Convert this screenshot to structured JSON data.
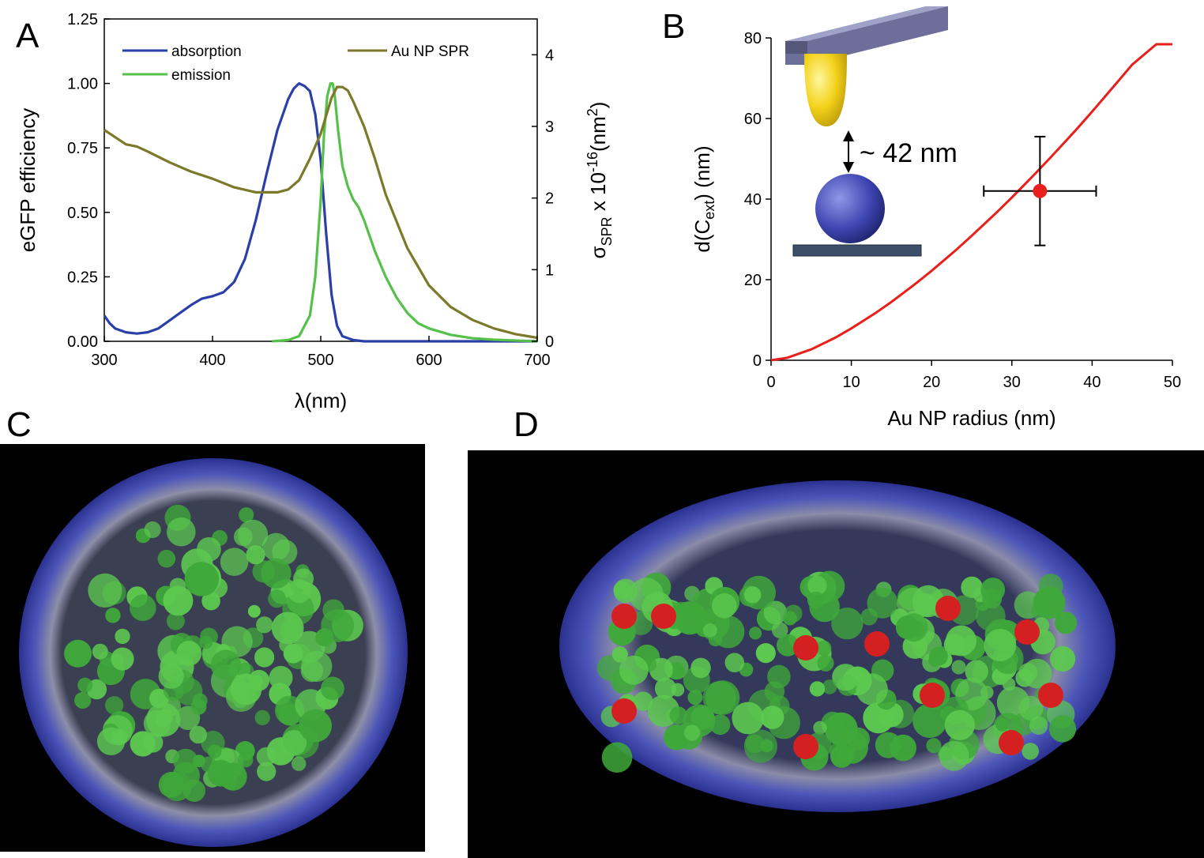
{
  "panels": {
    "A": "A",
    "B": "B",
    "C": "C",
    "D": "D"
  },
  "chart_data": [
    {
      "type": "line",
      "panel": "A",
      "xlabel": "λ(nm)",
      "ylabel": "eGFP efficiency",
      "ylabel_right": "σSPR x 10-16(nm2)",
      "ylabel_right_parts": {
        "sigma": "σ",
        "sub": "SPR",
        "mult": " x 10",
        "exp": "-16",
        "paren_open": "(nm",
        "exp2": "2",
        "paren_close": ")"
      },
      "xlim": [
        300,
        700
      ],
      "ylim": [
        0,
        1.25
      ],
      "ylim_right": [
        0,
        4.5
      ],
      "x_ticks": [
        "300",
        "400",
        "500",
        "600",
        "700"
      ],
      "y_ticks": [
        "0.00",
        "0.25",
        "0.50",
        "0.75",
        "1.00",
        "1.25"
      ],
      "y_right_ticks": [
        "0",
        "1",
        "2",
        "3",
        "4"
      ],
      "legend": [
        {
          "name": "absorption",
          "color": "#2b3fa8"
        },
        {
          "name": "emission",
          "color": "#55c04a"
        },
        {
          "name": "Au NP SPR",
          "color": "#7a7a2a"
        }
      ],
      "series": [
        {
          "name": "absorption",
          "axis": "left",
          "color": "#2b3fa8",
          "x": [
            300,
            305,
            310,
            320,
            330,
            340,
            350,
            360,
            370,
            380,
            390,
            400,
            410,
            420,
            430,
            440,
            450,
            460,
            470,
            475,
            480,
            485,
            490,
            495,
            500,
            505,
            510,
            515,
            520,
            530,
            540,
            560,
            600,
            700
          ],
          "y": [
            0.1,
            0.07,
            0.05,
            0.035,
            0.03,
            0.035,
            0.05,
            0.08,
            0.11,
            0.14,
            0.165,
            0.175,
            0.19,
            0.23,
            0.32,
            0.47,
            0.65,
            0.82,
            0.94,
            0.98,
            1.0,
            0.99,
            0.97,
            0.88,
            0.7,
            0.42,
            0.18,
            0.06,
            0.02,
            0.005,
            0.0,
            0.0,
            0.0,
            0.0
          ]
        },
        {
          "name": "emission",
          "axis": "left",
          "color": "#55c04a",
          "x": [
            455,
            470,
            480,
            490,
            495,
            500,
            503,
            506,
            509,
            511,
            513,
            516,
            520,
            525,
            530,
            535,
            540,
            545,
            550,
            560,
            570,
            580,
            590,
            600,
            620,
            640,
            660,
            680,
            700
          ],
          "y": [
            0.0,
            0.005,
            0.02,
            0.1,
            0.25,
            0.55,
            0.8,
            0.95,
            1.0,
            1.0,
            0.95,
            0.82,
            0.68,
            0.6,
            0.55,
            0.52,
            0.47,
            0.41,
            0.35,
            0.25,
            0.17,
            0.11,
            0.07,
            0.05,
            0.025,
            0.012,
            0.006,
            0.003,
            0.0
          ]
        },
        {
          "name": "Au NP SPR",
          "axis": "right",
          "color": "#7a7a2a",
          "x": [
            300,
            310,
            320,
            330,
            340,
            360,
            380,
            400,
            420,
            440,
            460,
            470,
            480,
            490,
            500,
            505,
            510,
            515,
            520,
            525,
            530,
            540,
            550,
            560,
            580,
            600,
            620,
            640,
            660,
            680,
            700
          ],
          "y": [
            2.95,
            2.85,
            2.75,
            2.72,
            2.65,
            2.5,
            2.37,
            2.27,
            2.15,
            2.08,
            2.08,
            2.12,
            2.25,
            2.55,
            2.9,
            3.15,
            3.4,
            3.55,
            3.55,
            3.5,
            3.35,
            3.0,
            2.55,
            2.05,
            1.3,
            0.78,
            0.48,
            0.3,
            0.18,
            0.1,
            0.05
          ]
        }
      ]
    },
    {
      "type": "line",
      "panel": "B",
      "xlabel": "Au NP radius (nm)",
      "ylabel": "d(Cext) (nm)",
      "ylabel_parts": {
        "pre": "d(C",
        "sub": "ext",
        "post": ") (nm)"
      },
      "xlim": [
        0,
        50
      ],
      "ylim": [
        0,
        80
      ],
      "x_ticks": [
        "0",
        "10",
        "20",
        "30",
        "40",
        "50"
      ],
      "y_ticks": [
        "0",
        "20",
        "40",
        "60",
        "80"
      ],
      "series": [
        {
          "name": "",
          "color": "#e8201c",
          "x": [
            0,
            2,
            5,
            8,
            10,
            13,
            15,
            18,
            20,
            23,
            25,
            28,
            30,
            33,
            35,
            38,
            40,
            43,
            45,
            48,
            50
          ],
          "y": [
            0,
            0.6,
            2.7,
            5.6,
            7.9,
            11.7,
            14.5,
            19.0,
            22.2,
            27.3,
            30.9,
            36.5,
            40.4,
            46.5,
            50.7,
            57.2,
            61.7,
            68.7,
            73.4,
            80.6,
            85.4
          ]
        }
      ],
      "point": {
        "x": 33.5,
        "y": 42,
        "xerr": 7,
        "yerr": 13.5,
        "color": "#e8201c"
      },
      "annotation": "~ 42 nm"
    }
  ],
  "images": {
    "C": {
      "alt": "",
      "colors": {
        "shell": "#3a44a8",
        "core": "#3fa83a"
      }
    },
    "D": {
      "alt": "",
      "colors": {
        "shell": "#3a44a8",
        "core": "#3fa83a",
        "accent": "#d42020"
      }
    }
  }
}
